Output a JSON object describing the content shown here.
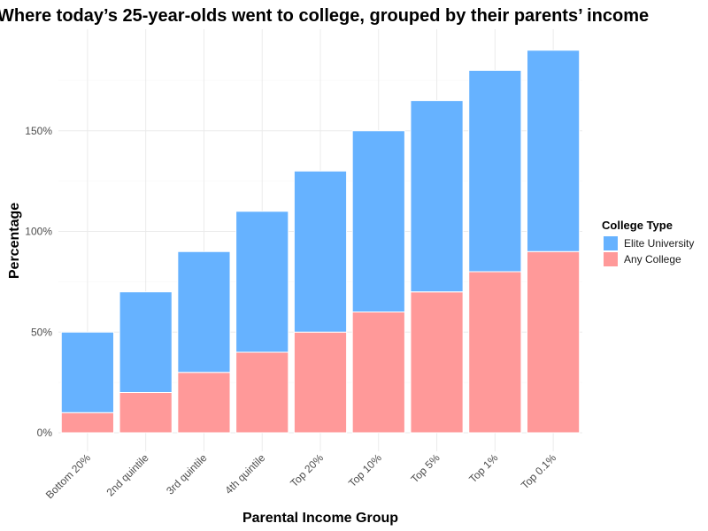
{
  "chart_data": {
    "type": "bar",
    "stacked": true,
    "title": "Where today’s 25-year-olds went to college, grouped by their parents’ income",
    "xlabel": "Parental Income Group",
    "ylabel": "Percentage",
    "categories": [
      "Bottom 20%",
      "2nd quintile",
      "3rd quintile",
      "4th quintile",
      "Top 20%",
      "Top 10%",
      "Top 5%",
      "Top 1%",
      "Top 0.1%"
    ],
    "series": [
      {
        "name": "Any College",
        "color": "#FF9999",
        "values": [
          10,
          20,
          30,
          40,
          50,
          60,
          70,
          80,
          90
        ]
      },
      {
        "name": "Elite University",
        "color": "#66B2FF",
        "values": [
          40,
          50,
          60,
          70,
          80,
          90,
          95,
          100,
          100
        ]
      }
    ],
    "ylim": [
      0,
      190
    ],
    "yticks": [
      0,
      50,
      100,
      150
    ],
    "ytick_labels": [
      "0%",
      "50%",
      "100%",
      "150%"
    ],
    "grid": true,
    "legend": {
      "title": "College Type",
      "position": "right",
      "entries": [
        {
          "label": "Elite University",
          "color": "#66B2FF"
        },
        {
          "label": "Any College",
          "color": "#FF9999"
        }
      ]
    }
  }
}
